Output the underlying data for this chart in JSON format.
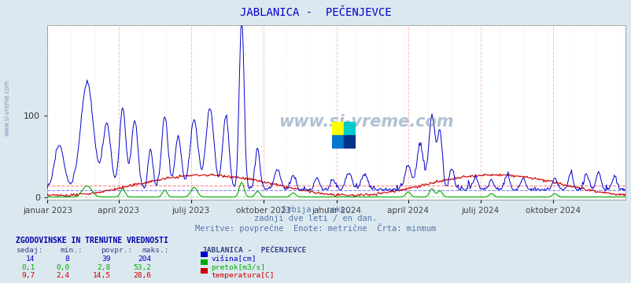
{
  "title": "JABLANICA -  PEČENJEVCE",
  "title_color": "#0000cc",
  "bg_color": "#dce8f0",
  "plot_bg_color": "#ffffff",
  "avg_line_blue_cm": 8,
  "avg_line_green_cm": 2.8,
  "avg_line_red_cm": 14.5,
  "y_max": 210,
  "y_ticks": [
    0,
    100
  ],
  "xlabel_texts": [
    "januar 2023",
    "april 2023",
    "julij 2023",
    "oktober 2023",
    "januar 2024",
    "april 2024",
    "julij 2024",
    "oktober 2024"
  ],
  "subtitle1": "Srbija / reke.",
  "subtitle2": "zadnji dve leti / en dan.",
  "subtitle3": "Meritve: povprečne  Enote: metrične  Črta: minmum",
  "table_title": "ZGODOVINSKE IN TRENUTNE VREDNOSTI",
  "col_headers": [
    "sedaj:",
    "min.:",
    "povpr.:",
    "maks.:",
    "JABLANICA -  PEČENJEVCE"
  ],
  "row1": [
    "14",
    "8",
    "39",
    "204",
    "višina[cm]"
  ],
  "row2": [
    "0,1",
    "0,0",
    "2,8",
    "53,2",
    "pretok[m3/s]"
  ],
  "row3": [
    "9,7",
    "2,4",
    "14,5",
    "28,6",
    "temperatura[C]"
  ],
  "row_colors": [
    "#0000cc",
    "#00aa00",
    "#cc0000"
  ],
  "watermark": "www.si-vreme.com",
  "watermark_color": "#7090b0",
  "tick_positions": [
    0,
    90,
    181,
    273,
    365,
    455,
    546,
    638
  ]
}
